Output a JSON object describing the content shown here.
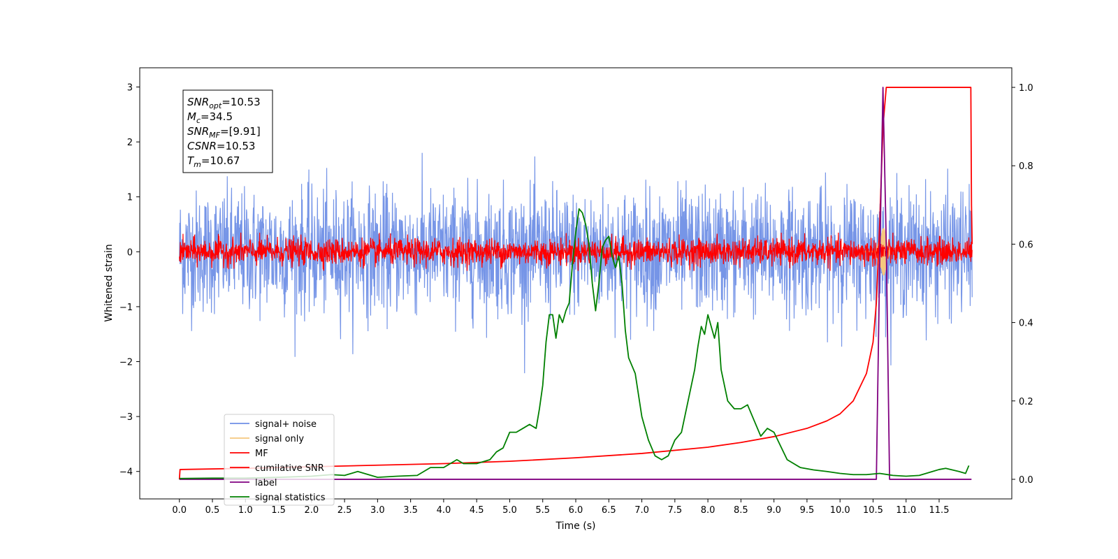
{
  "chart_data": {
    "type": "line",
    "title": "",
    "xlabel": "Time (s)",
    "ylabel_left": "Whitened strain",
    "ylabel_right": "",
    "xlim": [
      -0.6,
      12.6
    ],
    "ylim_left": [
      -4.5,
      3.35
    ],
    "ylim_right": [
      -0.05,
      1.05
    ],
    "x_ticks": [
      "0.0",
      "0.5",
      "1.0",
      "1.5",
      "2.0",
      "2.5",
      "3.0",
      "3.5",
      "4.0",
      "4.5",
      "5.0",
      "5.5",
      "6.0",
      "6.5",
      "7.0",
      "7.5",
      "8.0",
      "8.5",
      "9.0",
      "9.5",
      "10.0",
      "10.5",
      "11.0",
      "11.5"
    ],
    "y_ticks_left": [
      "−4",
      "−3",
      "−2",
      "−1",
      "0",
      "1",
      "2",
      "3"
    ],
    "y_ticks_right": [
      "0.0",
      "0.2",
      "0.4",
      "0.6",
      "0.8",
      "1.0"
    ],
    "grid": false,
    "legend_position": "lower-left",
    "annotation": {
      "lines": [
        {
          "sym": "SNR",
          "sub": "opt",
          "value": "=10.53"
        },
        {
          "sym": "M",
          "sub": "c",
          "value": "=34.5"
        },
        {
          "sym": "SNR",
          "sub": "MF",
          "value": "=[9.91]"
        },
        {
          "sym": "CSNR",
          "sub": "",
          "value": "=10.53"
        },
        {
          "sym": "T",
          "sub": "m",
          "value": "=10.67"
        }
      ]
    },
    "series": [
      {
        "name": "signal+ noise",
        "axis": "left",
        "color": "#6f8fe6",
        "style": "noise",
        "amplitude": 1.0,
        "x_range": [
          0.0,
          12.0
        ]
      },
      {
        "name": "signal only",
        "axis": "left",
        "color": "#f5c77e",
        "style": "chirp",
        "peak_time": 10.65,
        "peak_amplitude": 0.45
      },
      {
        "name": "MF",
        "axis": "left",
        "color": "#ff0000",
        "style": "noise",
        "amplitude": 0.12,
        "x_range": [
          0.0,
          12.0
        ]
      },
      {
        "name": "cumilative SNR",
        "axis": "right",
        "color": "#ff0000",
        "x": [
          0.0,
          0.01,
          1.0,
          2.0,
          3.0,
          4.0,
          5.0,
          6.0,
          7.0,
          8.0,
          8.5,
          9.0,
          9.5,
          9.8,
          10.0,
          10.2,
          10.4,
          10.5,
          10.55,
          10.6,
          10.65,
          10.7,
          10.8,
          11.5,
          11.98,
          11.99,
          12.0
        ],
        "y": [
          0.0,
          0.025,
          0.028,
          0.032,
          0.036,
          0.04,
          0.046,
          0.055,
          0.066,
          0.082,
          0.094,
          0.109,
          0.13,
          0.149,
          0.167,
          0.2,
          0.27,
          0.35,
          0.45,
          0.65,
          0.9,
          1.0,
          1.0,
          1.0,
          1.0,
          0.7,
          0.6
        ]
      },
      {
        "name": "label",
        "axis": "right",
        "color": "#800080",
        "x": [
          0.0,
          10.55,
          10.6,
          10.65,
          10.7,
          10.75,
          11.0,
          11.5,
          11.99
        ],
        "y": [
          0.0,
          0.0,
          0.55,
          1.0,
          0.6,
          0.0,
          0.0,
          0.0,
          0.0
        ]
      },
      {
        "name": "signal statistics",
        "axis": "right",
        "color": "#008000",
        "x": [
          0.0,
          0.5,
          1.0,
          1.5,
          2.0,
          2.3,
          2.5,
          2.7,
          3.0,
          3.3,
          3.6,
          3.8,
          4.0,
          4.1,
          4.2,
          4.3,
          4.5,
          4.7,
          4.8,
          4.9,
          5.0,
          5.1,
          5.2,
          5.3,
          5.4,
          5.45,
          5.5,
          5.55,
          5.6,
          5.65,
          5.7,
          5.75,
          5.8,
          5.85,
          5.9,
          5.95,
          6.0,
          6.05,
          6.1,
          6.15,
          6.2,
          6.25,
          6.3,
          6.35,
          6.4,
          6.45,
          6.5,
          6.55,
          6.6,
          6.65,
          6.7,
          6.75,
          6.8,
          6.9,
          7.0,
          7.1,
          7.2,
          7.3,
          7.4,
          7.5,
          7.6,
          7.7,
          7.8,
          7.85,
          7.9,
          7.95,
          8.0,
          8.05,
          8.1,
          8.15,
          8.2,
          8.3,
          8.4,
          8.5,
          8.6,
          8.7,
          8.8,
          8.9,
          9.0,
          9.2,
          9.4,
          9.6,
          9.8,
          10.0,
          10.2,
          10.4,
          10.6,
          10.8,
          11.0,
          11.2,
          11.4,
          11.5,
          11.6,
          11.8,
          11.9,
          11.95
        ],
        "y": [
          0.002,
          0.003,
          0.003,
          0.005,
          0.008,
          0.012,
          0.01,
          0.02,
          0.005,
          0.008,
          0.01,
          0.03,
          0.03,
          0.04,
          0.05,
          0.04,
          0.04,
          0.05,
          0.07,
          0.08,
          0.12,
          0.12,
          0.13,
          0.14,
          0.13,
          0.18,
          0.24,
          0.35,
          0.42,
          0.42,
          0.36,
          0.42,
          0.4,
          0.43,
          0.45,
          0.55,
          0.63,
          0.69,
          0.68,
          0.65,
          0.6,
          0.5,
          0.43,
          0.5,
          0.59,
          0.61,
          0.62,
          0.57,
          0.54,
          0.57,
          0.5,
          0.38,
          0.31,
          0.27,
          0.16,
          0.1,
          0.06,
          0.05,
          0.06,
          0.1,
          0.12,
          0.2,
          0.28,
          0.34,
          0.39,
          0.37,
          0.42,
          0.39,
          0.36,
          0.4,
          0.28,
          0.2,
          0.18,
          0.18,
          0.19,
          0.15,
          0.11,
          0.13,
          0.12,
          0.05,
          0.03,
          0.024,
          0.02,
          0.015,
          0.012,
          0.012,
          0.015,
          0.01,
          0.008,
          0.01,
          0.02,
          0.025,
          0.028,
          0.02,
          0.015,
          0.035
        ]
      }
    ]
  }
}
